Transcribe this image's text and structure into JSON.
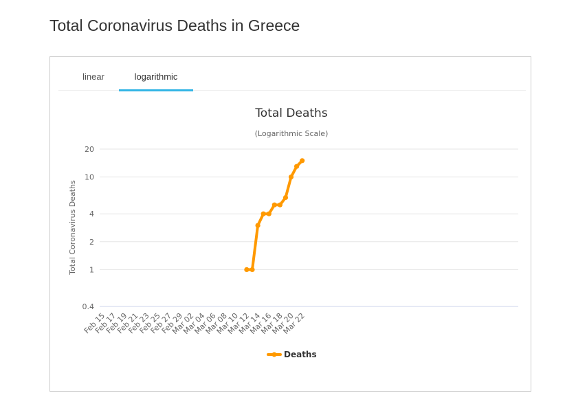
{
  "page": {
    "title": "Total Coronavirus Deaths in Greece"
  },
  "tabs": [
    {
      "label": "linear",
      "active": false
    },
    {
      "label": "logarithmic",
      "active": true
    }
  ],
  "colors": {
    "series": "#ff9900",
    "tab_active": "#33b5e5",
    "grid": "#e6e6e6",
    "axis": "#ccd6eb"
  },
  "chart_data": {
    "type": "line",
    "title": "Total Deaths",
    "subtitle": "(Logarithmic Scale)",
    "ylabel": "Total Coronavirus Deaths",
    "xlabel": "",
    "yscale": "log",
    "ylim": [
      0.4,
      20
    ],
    "yticks": [
      0.4,
      1,
      2,
      4,
      10,
      20
    ],
    "xticks": [
      "Feb 15",
      "Feb 17",
      "Feb 19",
      "Feb 21",
      "Feb 23",
      "Feb 25",
      "Feb 27",
      "Feb 29",
      "Mar 02",
      "Mar 04",
      "Mar 06",
      "Mar 08",
      "Mar 10",
      "Mar 12",
      "Mar 14",
      "Mar 16",
      "Mar 18",
      "Mar 20",
      "Mar 22"
    ],
    "grid": true,
    "legend_position": "bottom-center",
    "series": [
      {
        "name": "Deaths",
        "x": [
          "Mar 12",
          "Mar 13",
          "Mar 14",
          "Mar 15",
          "Mar 16",
          "Mar 17",
          "Mar 18",
          "Mar 19",
          "Mar 20",
          "Mar 21",
          "Mar 22"
        ],
        "values": [
          1,
          1,
          3,
          4,
          4,
          5,
          5,
          6,
          10,
          13,
          15
        ]
      }
    ]
  }
}
